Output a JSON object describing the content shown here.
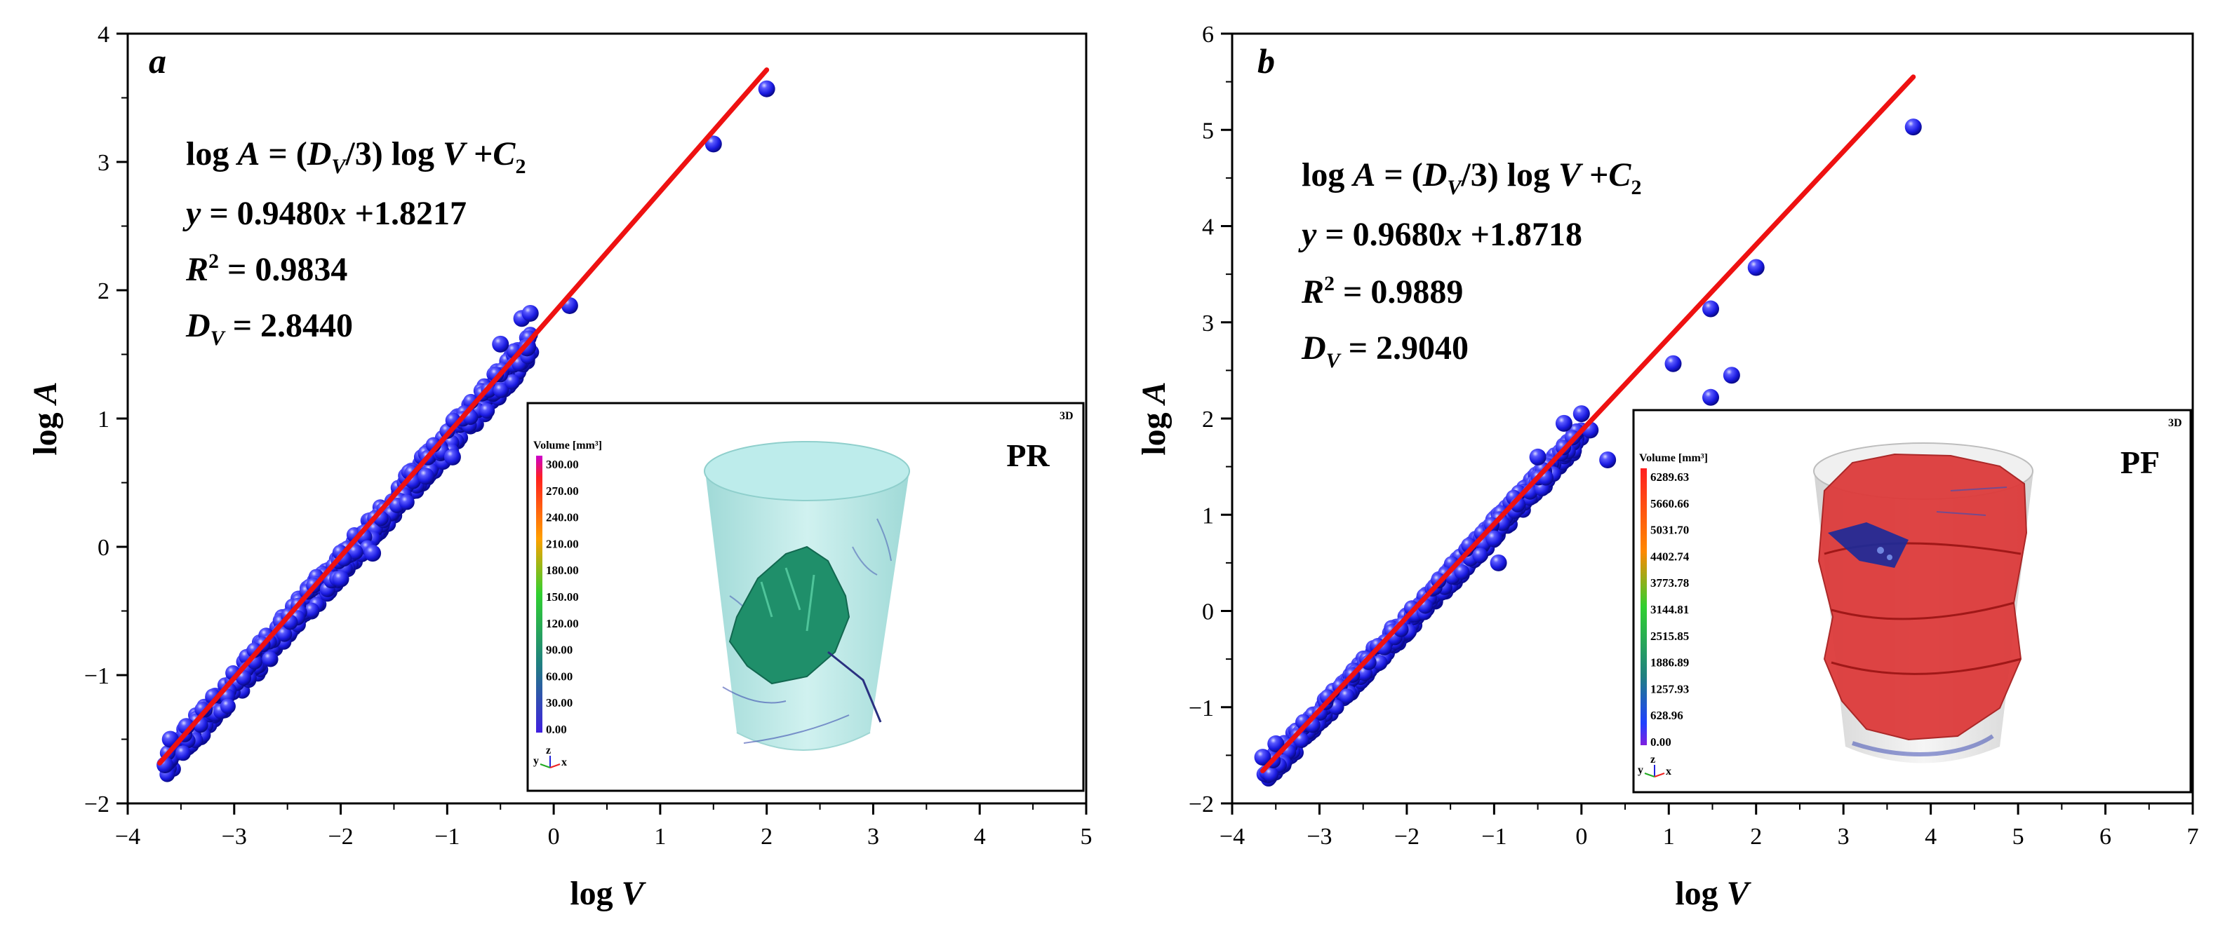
{
  "chart_data": [
    {
      "type": "scatter",
      "panel": "a",
      "xlabel": "log V",
      "ylabel": "log A",
      "xlim": [
        -4,
        5
      ],
      "ylim": [
        -2,
        4
      ],
      "xticks": [
        "−4",
        "−3",
        "−2",
        "−1",
        "0",
        "1",
        "2",
        "3",
        "4",
        "5"
      ],
      "yticks": [
        "−2",
        "−1",
        "0",
        "1",
        "2",
        "3",
        "4"
      ],
      "fit": {
        "slope": 0.948,
        "intercept": 1.8217,
        "x_range": [
          -3.7,
          2.0
        ]
      },
      "equation_lines": {
        "general": "log A = (DV/3) log V +C2",
        "fit": "y = 0.9480x +1.8217",
        "r2": "R2 = 0.9834",
        "dv": "DV = 2.8440"
      },
      "cloud": {
        "x_start": -3.65,
        "x_end": -0.2,
        "spread": 0.12,
        "below_bias": 0.06
      },
      "points_outliers": [
        {
          "x": -3.65,
          "y": -1.7
        },
        {
          "x": -3.6,
          "y": -1.5
        },
        {
          "x": -3.45,
          "y": -1.4
        },
        {
          "x": -2.0,
          "y": -0.25
        },
        {
          "x": -1.7,
          "y": -0.05
        },
        {
          "x": -1.2,
          "y": 0.55
        },
        {
          "x": -0.95,
          "y": 0.7
        },
        {
          "x": -0.5,
          "y": 1.58
        },
        {
          "x": -0.3,
          "y": 1.78
        },
        {
          "x": -0.22,
          "y": 1.82
        },
        {
          "x": -0.25,
          "y": 1.55
        },
        {
          "x": 0.15,
          "y": 1.88
        },
        {
          "x": 1.5,
          "y": 3.14
        },
        {
          "x": 2.0,
          "y": 3.57
        }
      ],
      "inset": {
        "label": "PR",
        "tag": "3D",
        "legend_title": "Volume [mm³]",
        "legend_values": [
          "300.00",
          "270.00",
          "240.00",
          "210.00",
          "180.00",
          "150.00",
          "120.00",
          "90.00",
          "60.00",
          "30.00",
          "0.00"
        ],
        "axis_letters": [
          "y",
          "z",
          "x"
        ]
      },
      "colors": {
        "point": "#2222dd",
        "fit": "#ee1111",
        "cylinder": "#a8e0de",
        "fracture": "#1f8f6a"
      }
    },
    {
      "type": "scatter",
      "panel": "b",
      "xlabel": "log V",
      "ylabel": "log A",
      "xlim": [
        -4,
        7
      ],
      "ylim": [
        -2,
        6
      ],
      "xticks": [
        "−4",
        "−3",
        "−2",
        "−1",
        "0",
        "1",
        "2",
        "3",
        "4",
        "5",
        "6",
        "7"
      ],
      "yticks": [
        "−2",
        "−1",
        "0",
        "1",
        "2",
        "3",
        "4",
        "5",
        "6"
      ],
      "fit": {
        "slope": 0.968,
        "intercept": 1.8718,
        "x_range": [
          -3.65,
          3.8
        ]
      },
      "equation_lines": {
        "general": "log A = (DV/3) log V +C2",
        "fit": "y = 0.9680x +1.8718",
        "r2": "R2 = 0.9889",
        "dv": "DV = 2.9040"
      },
      "cloud": {
        "x_start": -3.65,
        "x_end": 0.0,
        "spread": 0.12,
        "below_bias": 0.06
      },
      "points_outliers": [
        {
          "x": -3.65,
          "y": -1.52
        },
        {
          "x": -3.5,
          "y": -1.38
        },
        {
          "x": -1.0,
          "y": 0.75
        },
        {
          "x": -0.95,
          "y": 0.5
        },
        {
          "x": -0.5,
          "y": 1.6
        },
        {
          "x": -0.2,
          "y": 1.95
        },
        {
          "x": 0.0,
          "y": 2.05
        },
        {
          "x": 0.1,
          "y": 1.88
        },
        {
          "x": 0.3,
          "y": 1.57
        },
        {
          "x": 1.05,
          "y": 2.57
        },
        {
          "x": 1.48,
          "y": 3.14
        },
        {
          "x": 1.48,
          "y": 2.22
        },
        {
          "x": 1.72,
          "y": 2.45
        },
        {
          "x": 2.0,
          "y": 3.57
        },
        {
          "x": 3.8,
          "y": 5.03
        }
      ],
      "inset": {
        "label": "PF",
        "tag": "3D",
        "legend_title": "Volume [mm³]",
        "legend_values": [
          "6289.63",
          "5660.66",
          "5031.70",
          "4402.74",
          "3773.78",
          "3144.81",
          "2515.85",
          "1886.89",
          "1257.93",
          "628.96",
          "0.00"
        ],
        "axis_letters": [
          "y",
          "z",
          "x"
        ]
      },
      "colors": {
        "point": "#2222dd",
        "fit": "#ee1111",
        "cylinder": "#e6e6e6",
        "fracture": "#dd3b3b"
      }
    }
  ]
}
